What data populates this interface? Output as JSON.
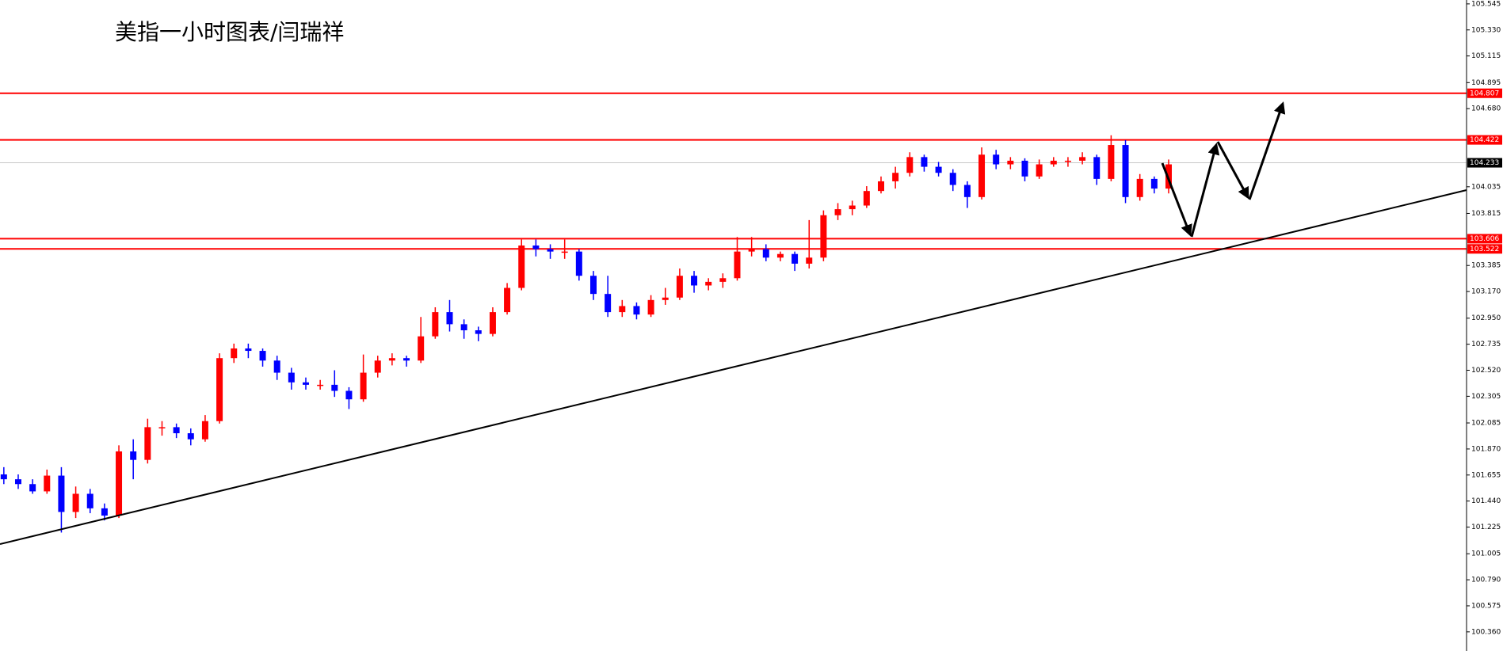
{
  "chart_data": {
    "type": "candlestick",
    "title": "美指一小时图表/闫瑞祥",
    "up_color": "#ff0000",
    "down_color": "#0000ff",
    "ylim": [
      100.202,
      105.577
    ],
    "yticks": [
      105.545,
      {
        "value": 105.33,
        "label": "105.330"
      },
      105.115,
      104.895,
      {
        "value": 104.68,
        "label": "104.680"
      },
      104.035,
      103.815,
      103.385,
      {
        "value": 103.17,
        "label": "103.170"
      },
      {
        "value": 102.95,
        "label": "102.950"
      },
      102.735,
      {
        "value": 102.52,
        "label": "102.520"
      },
      102.305,
      102.085,
      {
        "value": 101.87,
        "label": "101.870"
      },
      101.655,
      {
        "value": 101.44,
        "label": "101.440"
      },
      101.225,
      101.005,
      {
        "value": 100.79,
        "label": "100.790"
      },
      100.575,
      {
        "value": 100.36,
        "label": "100.360"
      }
    ],
    "price_lines": [
      {
        "value": 104.807,
        "color": "#ff0000",
        "label_background": "#ff0000"
      },
      {
        "value": 104.422,
        "color": "#ff0000",
        "label_background": "#ff0000"
      },
      {
        "value": 104.233,
        "color": "#c8c8c8",
        "label_background": "#000000"
      },
      {
        "value": 103.606,
        "color": "#ff0000",
        "label_background": "#ff0000"
      },
      {
        "value": 103.522,
        "color": "#ff0000",
        "label_background": "#ff0000"
      }
    ],
    "ohlc": [
      [
        101.66,
        101.72,
        101.58,
        101.62
      ],
      [
        101.62,
        101.66,
        101.54,
        101.58
      ],
      [
        101.58,
        101.62,
        101.5,
        101.52
      ],
      [
        101.52,
        101.7,
        101.5,
        101.65
      ],
      [
        101.65,
        101.72,
        101.18,
        101.35
      ],
      [
        101.35,
        101.56,
        101.3,
        101.5
      ],
      [
        101.5,
        101.54,
        101.34,
        101.38
      ],
      [
        101.38,
        101.42,
        101.28,
        101.32
      ],
      [
        101.32,
        101.9,
        101.3,
        101.85
      ],
      [
        101.85,
        101.95,
        101.62,
        101.78
      ],
      [
        101.78,
        102.12,
        101.75,
        102.05
      ],
      [
        102.05,
        102.1,
        101.98,
        102.05
      ],
      [
        102.05,
        102.08,
        101.96,
        102.0
      ],
      [
        102.0,
        102.04,
        101.9,
        101.95
      ],
      [
        101.95,
        102.15,
        101.93,
        102.1
      ],
      [
        102.1,
        102.66,
        102.08,
        102.62
      ],
      [
        102.62,
        102.74,
        102.58,
        102.7
      ],
      [
        102.7,
        102.74,
        102.62,
        102.68
      ],
      [
        102.68,
        102.7,
        102.55,
        102.6
      ],
      [
        102.6,
        102.64,
        102.44,
        102.5
      ],
      [
        102.5,
        102.54,
        102.36,
        102.42
      ],
      [
        102.42,
        102.46,
        102.36,
        102.4
      ],
      [
        102.4,
        102.44,
        102.36,
        102.4
      ],
      [
        102.4,
        102.52,
        102.3,
        102.35
      ],
      [
        102.35,
        102.38,
        102.2,
        102.28
      ],
      [
        102.28,
        102.65,
        102.26,
        102.5
      ],
      [
        102.5,
        102.64,
        102.46,
        102.6
      ],
      [
        102.6,
        102.66,
        102.56,
        102.62
      ],
      [
        102.62,
        102.64,
        102.55,
        102.6
      ],
      [
        102.6,
        102.96,
        102.58,
        102.8
      ],
      [
        102.8,
        103.04,
        102.78,
        103.0
      ],
      [
        103.0,
        103.1,
        102.84,
        102.9
      ],
      [
        102.9,
        102.94,
        102.78,
        102.85
      ],
      [
        102.85,
        102.88,
        102.76,
        102.82
      ],
      [
        102.82,
        103.04,
        102.8,
        103.0
      ],
      [
        103.0,
        103.24,
        102.98,
        103.2
      ],
      [
        103.2,
        103.6,
        103.18,
        103.55
      ],
      [
        103.55,
        103.6,
        103.46,
        103.52
      ],
      [
        103.52,
        103.56,
        103.44,
        103.5
      ],
      [
        103.5,
        103.6,
        103.44,
        103.5
      ],
      [
        103.5,
        103.52,
        103.26,
        103.3
      ],
      [
        103.3,
        103.34,
        103.1,
        103.15
      ],
      [
        103.15,
        103.3,
        102.96,
        103.0
      ],
      [
        103.0,
        103.1,
        102.96,
        103.05
      ],
      [
        103.05,
        103.08,
        102.94,
        102.98
      ],
      [
        102.98,
        103.14,
        102.96,
        103.1
      ],
      [
        103.1,
        103.2,
        103.06,
        103.12
      ],
      [
        103.12,
        103.36,
        103.1,
        103.3
      ],
      [
        103.3,
        103.34,
        103.16,
        103.22
      ],
      [
        103.22,
        103.28,
        103.18,
        103.25
      ],
      [
        103.25,
        103.32,
        103.2,
        103.28
      ],
      [
        103.28,
        103.62,
        103.26,
        103.5
      ],
      [
        103.5,
        103.62,
        103.46,
        103.52
      ],
      [
        103.52,
        103.56,
        103.42,
        103.45
      ],
      [
        103.45,
        103.5,
        103.42,
        103.48
      ],
      [
        103.48,
        103.5,
        103.34,
        103.4
      ],
      [
        103.4,
        103.76,
        103.36,
        103.45
      ],
      [
        103.45,
        103.84,
        103.42,
        103.8
      ],
      [
        103.8,
        103.9,
        103.76,
        103.85
      ],
      [
        103.85,
        103.92,
        103.8,
        103.88
      ],
      [
        103.88,
        104.04,
        103.86,
        104.0
      ],
      [
        104.0,
        104.12,
        103.98,
        104.08
      ],
      [
        104.08,
        104.2,
        104.02,
        104.15
      ],
      [
        104.15,
        104.32,
        104.12,
        104.28
      ],
      [
        104.28,
        104.3,
        104.16,
        104.2
      ],
      [
        104.2,
        104.24,
        104.12,
        104.15
      ],
      [
        104.15,
        104.18,
        104.0,
        104.05
      ],
      [
        104.05,
        104.08,
        103.86,
        103.95
      ],
      [
        103.95,
        104.36,
        103.93,
        104.3
      ],
      [
        104.3,
        104.34,
        104.18,
        104.22
      ],
      [
        104.22,
        104.28,
        104.18,
        104.25
      ],
      [
        104.25,
        104.27,
        104.08,
        104.12
      ],
      [
        104.12,
        104.26,
        104.1,
        104.22
      ],
      [
        104.22,
        104.28,
        104.2,
        104.25
      ],
      [
        104.25,
        104.28,
        104.2,
        104.25
      ],
      [
        104.25,
        104.32,
        104.22,
        104.28
      ],
      [
        104.28,
        104.3,
        104.05,
        104.1
      ],
      [
        104.1,
        104.46,
        104.08,
        104.38
      ],
      [
        104.38,
        104.42,
        103.9,
        103.95
      ],
      [
        103.95,
        104.14,
        103.92,
        104.1
      ],
      [
        104.1,
        104.12,
        103.98,
        104.02
      ],
      [
        104.02,
        104.26,
        103.98,
        104.22
      ]
    ]
  }
}
